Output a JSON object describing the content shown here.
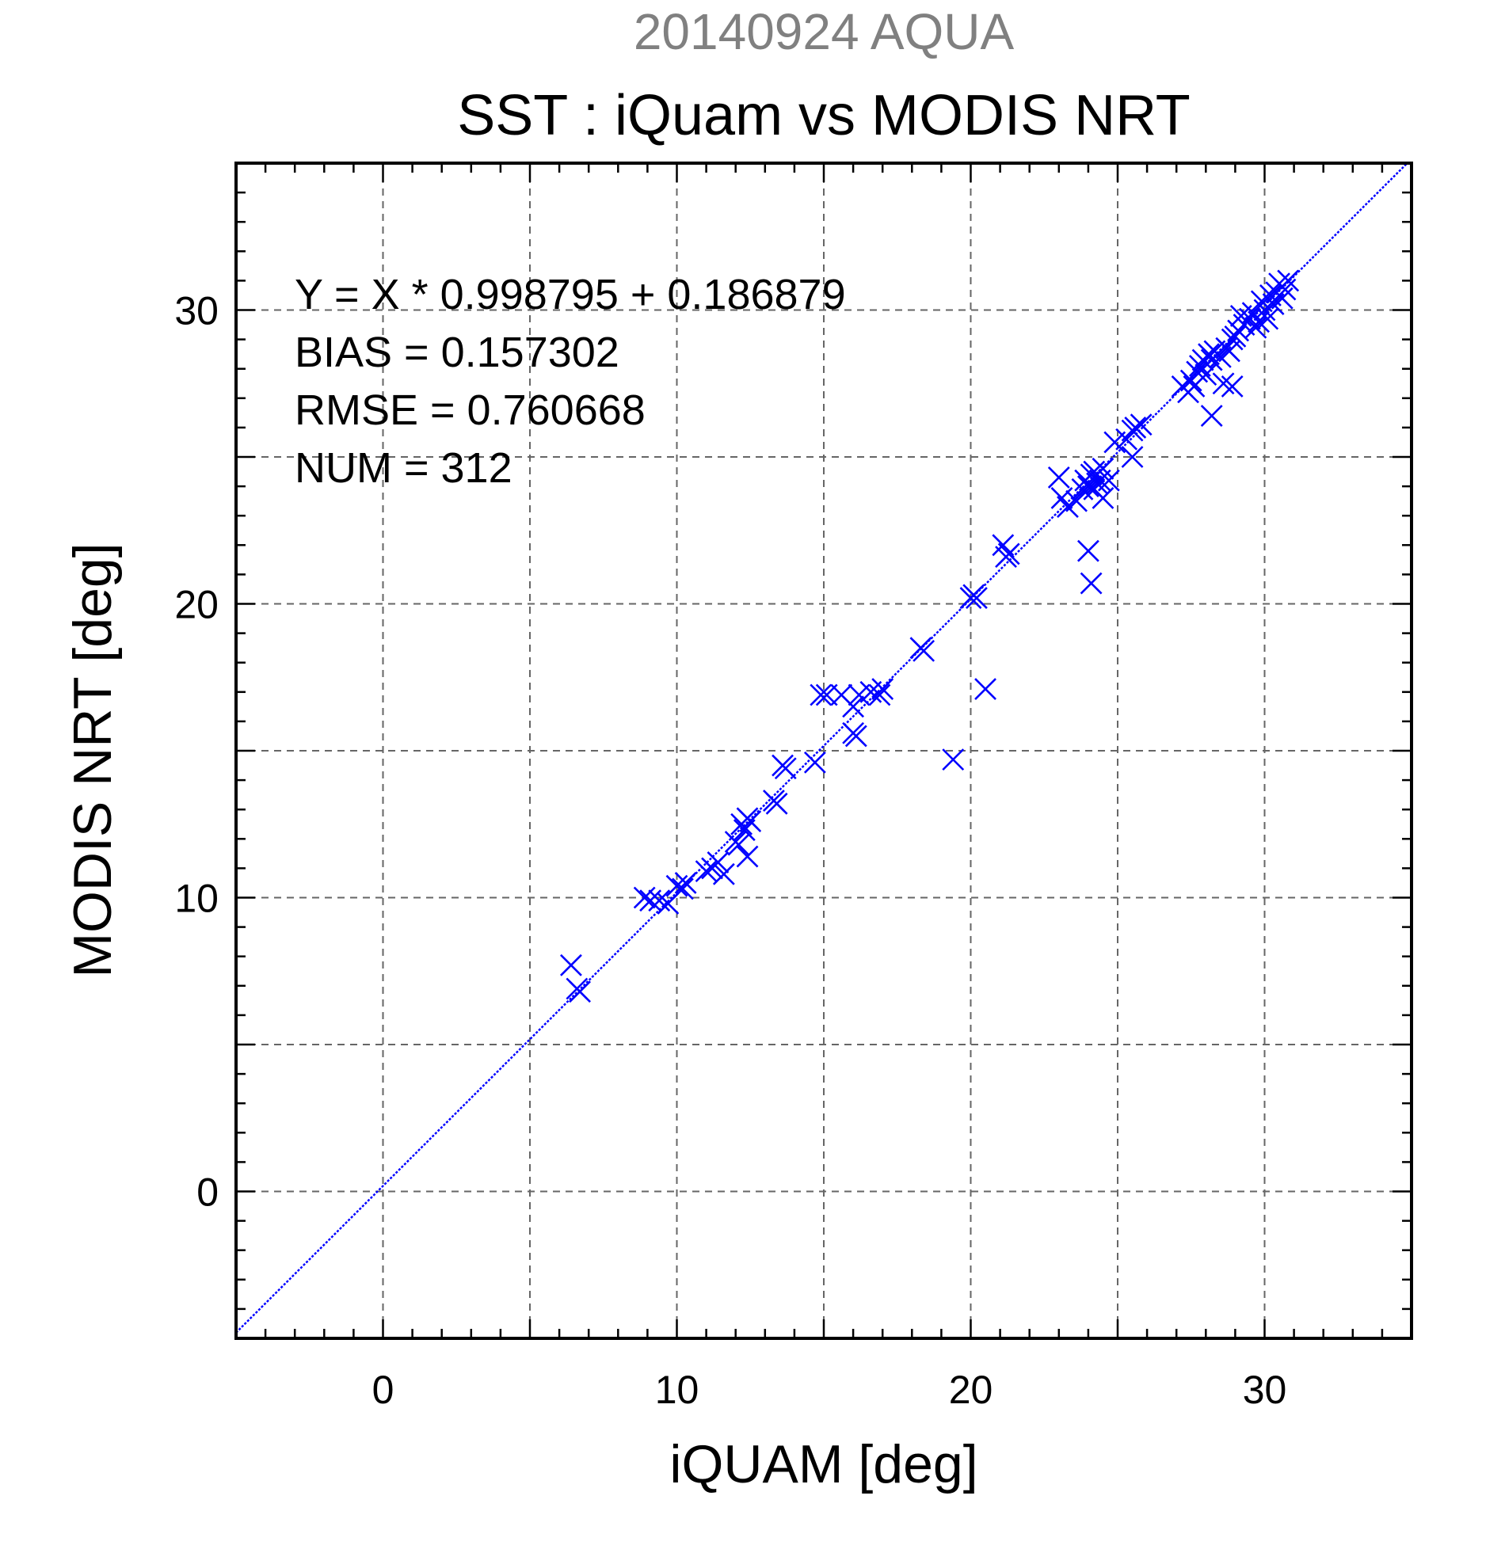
{
  "chart_data": {
    "type": "scatter",
    "suptitle": "20140924 AQUA",
    "title": "SST : iQuam vs MODIS NRT",
    "xlabel": "iQUAM [deg]",
    "ylabel": "MODIS NRT [deg]",
    "xlim": [
      -5,
      35
    ],
    "ylim": [
      -5,
      35
    ],
    "xticks": [
      0,
      10,
      20,
      30
    ],
    "yticks": [
      0,
      10,
      20,
      30
    ],
    "xtick_labels": [
      "0",
      "10",
      "20",
      "30"
    ],
    "ytick_labels": [
      "0",
      "10",
      "20",
      "30"
    ],
    "grid_step": 5,
    "minor_step": 1,
    "grid": true,
    "marker": "x",
    "color": "#0000ff",
    "fit_line": {
      "slope": 0.998795,
      "intercept": 0.186879
    },
    "stats": [
      "Y = X * 0.998795 + 0.186879",
      "BIAS = 0.157302",
      "RMSE = 0.760668",
      "NUM = 312"
    ],
    "series": [
      {
        "marker": "x",
        "x": [
          6.4,
          6.6,
          6.7,
          8.9,
          9.1,
          9.4,
          9.7,
          10.0,
          10.2,
          10.3,
          11.0,
          11.2,
          11.4,
          11.6,
          12.0,
          12.1,
          12.2,
          12.3,
          12.4,
          12.5,
          12.4,
          13.3,
          13.4,
          13.6,
          13.7,
          14.7,
          14.9,
          15.1,
          15.6,
          16.0,
          16.1,
          16.0,
          16.2,
          16.6,
          16.9,
          17.0,
          18.3,
          18.4,
          19.4,
          20.0,
          20.1,
          20.2,
          20.5,
          21.2,
          21.3,
          21.1,
          23.0,
          23.1,
          23.3,
          23.6,
          23.8,
          23.9,
          24.0,
          24.1,
          24.2,
          24.2,
          24.3,
          24.4,
          24.5,
          24.7,
          24.0,
          24.1,
          24.1,
          24.5,
          24.9,
          25.3,
          25.5,
          25.6,
          25.8,
          25.5,
          27.2,
          27.4,
          27.5,
          27.6,
          27.7,
          27.8,
          27.9,
          28.0,
          28.1,
          28.2,
          28.3,
          28.5,
          28.7,
          28.8,
          28.9,
          29.0,
          29.1,
          29.2,
          29.3,
          29.5,
          29.6,
          29.7,
          29.8,
          29.9,
          30.0,
          30.1,
          30.2,
          30.3,
          30.4,
          30.5,
          30.6,
          30.7,
          30.8,
          28.2,
          28.6,
          28.9
        ],
        "y": [
          7.7,
          6.9,
          6.8,
          10.0,
          9.9,
          9.9,
          9.8,
          10.4,
          10.3,
          10.5,
          10.9,
          11.0,
          11.2,
          10.8,
          11.9,
          11.8,
          12.5,
          12.3,
          12.7,
          12.6,
          11.4,
          13.3,
          13.2,
          14.5,
          14.4,
          14.6,
          16.9,
          16.9,
          16.9,
          15.6,
          15.5,
          16.5,
          16.9,
          17.0,
          16.9,
          17.1,
          18.5,
          18.4,
          14.7,
          20.2,
          20.3,
          20.2,
          17.1,
          21.6,
          21.7,
          22.0,
          24.3,
          23.6,
          23.3,
          23.5,
          23.9,
          24.2,
          24.0,
          24.4,
          23.9,
          24.5,
          24.1,
          24.2,
          24.6,
          24.2,
          21.8,
          20.7,
          24.0,
          23.6,
          25.5,
          25.6,
          25.9,
          26.0,
          26.1,
          25.0,
          27.4,
          27.2,
          27.6,
          27.4,
          27.9,
          28.1,
          28.3,
          27.8,
          28.5,
          28.3,
          28.6,
          28.4,
          28.7,
          28.6,
          29.0,
          29.1,
          29.3,
          29.8,
          29.5,
          29.7,
          29.9,
          29.4,
          29.6,
          30.3,
          30.0,
          29.7,
          30.5,
          30.2,
          30.6,
          30.9,
          30.4,
          30.7,
          31.0,
          26.4,
          27.5,
          27.4
        ]
      }
    ]
  }
}
